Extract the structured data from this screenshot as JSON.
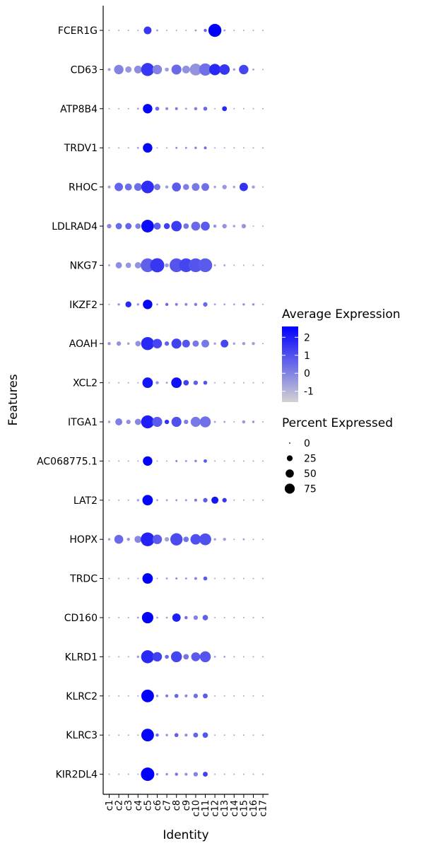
{
  "chart_data": {
    "type": "dotplot",
    "xlabel": "Identity",
    "ylabel": "Features",
    "clusters": [
      "c1",
      "c2",
      "c3",
      "c4",
      "c5",
      "c6",
      "c7",
      "c8",
      "c9",
      "c10",
      "c11",
      "c12",
      "c13",
      "c14",
      "c15",
      "c16",
      "c17"
    ],
    "genes": [
      "FCER1G",
      "CD63",
      "ATP8B4",
      "TRDV1",
      "RHOC",
      "LDLRAD4",
      "NKG7",
      "IKZF2",
      "AOAH",
      "XCL2",
      "ITGA1",
      "AC068775.1",
      "LAT2",
      "HOPX",
      "TRDC",
      "CD160",
      "KLRD1",
      "KLRC2",
      "KLRC3",
      "KIR2DL4"
    ],
    "pct_expressed": [
      [
        1,
        1,
        1,
        1,
        30,
        2,
        1,
        1,
        1,
        2,
        5,
        85,
        2,
        1,
        1,
        1,
        1
      ],
      [
        4,
        45,
        20,
        30,
        85,
        45,
        8,
        50,
        30,
        70,
        75,
        65,
        55,
        3,
        45,
        2,
        1
      ],
      [
        1,
        1,
        1,
        2,
        45,
        8,
        4,
        4,
        2,
        5,
        8,
        1,
        12,
        1,
        1,
        1,
        1
      ],
      [
        1,
        1,
        1,
        2,
        45,
        1,
        1,
        2,
        2,
        3,
        4,
        1,
        1,
        1,
        1,
        1,
        1
      ],
      [
        4,
        35,
        25,
        30,
        80,
        20,
        5,
        40,
        18,
        30,
        30,
        3,
        10,
        3,
        35,
        5,
        1
      ],
      [
        10,
        20,
        20,
        15,
        80,
        25,
        18,
        55,
        15,
        40,
        40,
        5,
        10,
        3,
        10,
        1,
        1
      ],
      [
        2,
        20,
        15,
        20,
        95,
        100,
        8,
        95,
        95,
        95,
        95,
        2,
        2,
        1,
        1,
        1,
        1
      ],
      [
        1,
        3,
        18,
        3,
        45,
        2,
        5,
        4,
        4,
        5,
        10,
        2,
        2,
        2,
        3,
        3,
        1
      ],
      [
        5,
        10,
        3,
        15,
        85,
        45,
        10,
        50,
        30,
        20,
        30,
        3,
        30,
        3,
        5,
        5,
        1
      ],
      [
        1,
        1,
        1,
        1,
        55,
        5,
        2,
        55,
        15,
        10,
        8,
        1,
        1,
        1,
        1,
        1,
        1
      ],
      [
        3,
        25,
        10,
        20,
        85,
        50,
        10,
        50,
        10,
        50,
        60,
        2,
        2,
        1,
        5,
        3,
        1
      ],
      [
        1,
        1,
        1,
        1,
        45,
        1,
        1,
        2,
        2,
        3,
        6,
        1,
        1,
        1,
        1,
        1,
        1
      ],
      [
        1,
        1,
        1,
        3,
        55,
        2,
        2,
        2,
        2,
        4,
        10,
        25,
        10,
        1,
        1,
        1,
        1
      ],
      [
        3,
        40,
        5,
        25,
        95,
        45,
        10,
        75,
        15,
        55,
        70,
        3,
        5,
        1,
        2,
        1,
        1
      ],
      [
        1,
        1,
        1,
        1,
        55,
        1,
        2,
        2,
        2,
        4,
        8,
        1,
        1,
        1,
        1,
        1,
        1
      ],
      [
        1,
        1,
        1,
        2,
        65,
        2,
        2,
        35,
        5,
        10,
        15,
        1,
        1,
        1,
        1,
        1,
        1
      ],
      [
        1,
        1,
        1,
        3,
        85,
        45,
        8,
        60,
        15,
        40,
        60,
        2,
        2,
        1,
        1,
        1,
        1
      ],
      [
        1,
        1,
        1,
        1,
        80,
        3,
        4,
        8,
        4,
        10,
        12,
        1,
        1,
        1,
        1,
        1,
        1
      ],
      [
        1,
        1,
        1,
        1,
        80,
        5,
        3,
        8,
        4,
        12,
        15,
        1,
        1,
        1,
        1,
        1,
        1
      ],
      [
        1,
        1,
        1,
        1,
        90,
        3,
        3,
        5,
        4,
        10,
        12,
        1,
        1,
        1,
        1,
        1,
        1
      ]
    ],
    "avg_expression": [
      [
        -0.6,
        -0.6,
        -0.6,
        -0.6,
        1.5,
        -0.4,
        -0.6,
        -0.6,
        -0.6,
        -0.5,
        0.5,
        2.6,
        -0.5,
        -0.6,
        -0.6,
        -0.6,
        -0.6
      ],
      [
        -0.5,
        0.0,
        -0.4,
        -0.2,
        1.5,
        0.0,
        -0.5,
        0.5,
        -0.3,
        -0.3,
        0.4,
        1.8,
        1.5,
        -0.6,
        1.2,
        -0.6,
        -0.6
      ],
      [
        -0.6,
        -0.6,
        -0.6,
        -0.6,
        2.5,
        0.5,
        -0.1,
        0.2,
        -0.5,
        0.1,
        0.5,
        -0.6,
        1.8,
        -0.6,
        -0.6,
        -0.6,
        -0.6
      ],
      [
        -0.6,
        -0.6,
        -0.6,
        -0.6,
        2.5,
        -0.6,
        -0.6,
        -0.1,
        -0.2,
        0.0,
        0.4,
        -0.6,
        -0.6,
        -0.6,
        -0.6,
        -0.6,
        -0.6
      ],
      [
        -0.6,
        0.6,
        0.4,
        0.4,
        1.7,
        0.3,
        -0.5,
        0.8,
        0.1,
        0.2,
        0.4,
        -0.6,
        -0.4,
        -0.6,
        1.6,
        -0.6,
        -0.6
      ],
      [
        -0.1,
        0.5,
        0.6,
        0.1,
        2.4,
        0.8,
        1.3,
        1.4,
        0.3,
        0.5,
        0.8,
        -0.4,
        -0.3,
        -0.6,
        -0.4,
        -0.6,
        -0.6
      ],
      [
        -0.6,
        -0.2,
        -0.4,
        -0.3,
        0.7,
        1.5,
        -0.5,
        0.9,
        1.2,
        0.9,
        0.8,
        -0.6,
        -0.6,
        -0.6,
        -0.6,
        -0.6,
        -0.6
      ],
      [
        -0.6,
        -0.4,
        1.8,
        -0.4,
        2.5,
        -0.6,
        0.5,
        0.1,
        -0.1,
        0.1,
        0.5,
        -0.6,
        -0.6,
        -0.6,
        -0.3,
        -0.3,
        -0.6
      ],
      [
        -0.4,
        -0.3,
        -0.5,
        -0.3,
        1.8,
        1.2,
        0.6,
        1.3,
        0.9,
        0.2,
        0.2,
        -0.6,
        1.2,
        -0.6,
        -0.5,
        -0.6,
        -0.6
      ],
      [
        -0.6,
        -0.6,
        -0.6,
        -0.6,
        2.2,
        -0.4,
        -0.6,
        2.3,
        1.3,
        0.7,
        0.9,
        -0.6,
        -0.6,
        -0.6,
        -0.6,
        -0.6,
        -0.6
      ],
      [
        -0.6,
        0.1,
        -0.3,
        -0.1,
        2.0,
        0.8,
        1.6,
        1.0,
        0.1,
        0.2,
        0.4,
        -0.6,
        -0.6,
        -0.6,
        -0.4,
        -0.4,
        -0.6
      ],
      [
        -0.6,
        -0.6,
        -0.6,
        -0.6,
        2.6,
        -0.6,
        -0.6,
        0.2,
        -0.3,
        0.0,
        0.8,
        -0.6,
        -0.6,
        -0.6,
        -0.6,
        -0.6,
        -0.6
      ],
      [
        -0.6,
        -0.6,
        -0.6,
        -0.6,
        2.5,
        -0.6,
        -0.6,
        -0.3,
        -0.3,
        0.2,
        0.8,
        2.2,
        1.5,
        -0.6,
        -0.6,
        -0.6,
        -0.6
      ],
      [
        -0.6,
        0.5,
        -0.4,
        -0.1,
        1.9,
        0.8,
        -0.6,
        1.1,
        0.3,
        1.0,
        1.0,
        -0.6,
        -0.6,
        -0.6,
        -0.6,
        -0.6,
        -0.6
      ],
      [
        -0.6,
        -0.6,
        -0.6,
        -0.6,
        2.6,
        -0.6,
        -0.6,
        0.0,
        -0.4,
        -0.1,
        0.8,
        -0.6,
        -0.6,
        -0.6,
        -0.6,
        -0.6,
        -0.6
      ],
      [
        -0.6,
        -0.6,
        -0.6,
        -0.6,
        2.6,
        -0.6,
        -0.6,
        2.0,
        0.4,
        0.0,
        0.7,
        -0.6,
        -0.6,
        -0.6,
        -0.6,
        -0.6,
        -0.6
      ],
      [
        -0.6,
        -0.6,
        -0.6,
        -0.6,
        1.8,
        1.3,
        0.5,
        1.2,
        0.3,
        0.8,
        0.9,
        -0.6,
        -0.6,
        -0.6,
        -0.6,
        -0.6,
        -0.6
      ],
      [
        -0.6,
        -0.6,
        -0.6,
        -0.6,
        2.6,
        -0.3,
        0.2,
        0.6,
        -0.1,
        0.4,
        0.8,
        -0.6,
        -0.6,
        -0.6,
        -0.6,
        -0.6,
        -0.6
      ],
      [
        -0.6,
        -0.6,
        -0.6,
        -0.6,
        2.5,
        0.5,
        -0.3,
        0.7,
        -0.1,
        0.6,
        0.9,
        -0.6,
        -0.6,
        -0.6,
        -0.6,
        -0.6,
        -0.6
      ],
      [
        -0.6,
        -0.6,
        -0.6,
        -0.6,
        2.6,
        -0.3,
        -0.3,
        0.3,
        -0.2,
        0.0,
        1.3,
        -0.6,
        -0.6,
        -0.6,
        -0.6,
        -0.6,
        -0.6
      ]
    ],
    "color_scale": {
      "low_color": "#d3d3d3",
      "high_color": "#0000ff",
      "range": [
        -1.6,
        2.6
      ],
      "breaks": [
        2,
        1,
        0,
        -1
      ],
      "break_labels": [
        "2",
        "1",
        "0",
        "-1"
      ]
    },
    "size_scale": {
      "breaks": [
        0,
        25,
        50,
        75
      ],
      "break_labels": [
        "0",
        "25",
        "50",
        "75"
      ],
      "range": [
        0,
        100
      ]
    },
    "legend": {
      "color_title": "Average Expression",
      "size_title": "Percent Expressed",
      "placement": "right"
    }
  }
}
